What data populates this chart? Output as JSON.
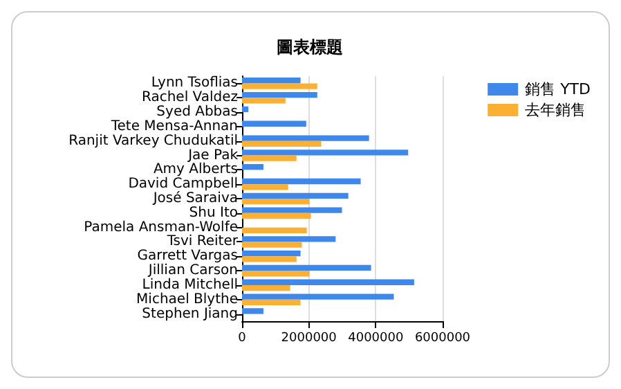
{
  "chart_data": {
    "type": "bar",
    "orientation": "horizontal",
    "title": "圖表標題",
    "categories": [
      "Lynn Tsoflias",
      "Rachel Valdez",
      "Syed Abbas",
      "Tete Mensa-Annan",
      "Ranjit Varkey Chudukatil",
      "Jae Pak",
      "Amy Alberts",
      "David Campbell",
      "José Saraiva",
      "Shu Ito",
      "Pamela Ansman-Wolfe",
      "Tsvi Reiter",
      "Garrett Vargas",
      "Jillian Carson",
      "Linda Mitchell",
      "Michael Blythe",
      "Stephen Jiang"
    ],
    "series": [
      {
        "name": "銷售 YTD",
        "color": "#3d88ea",
        "values": [
          1750000,
          2250000,
          190000,
          1920000,
          3800000,
          4970000,
          640000,
          3550000,
          3180000,
          2990000,
          null,
          2800000,
          1750000,
          3860000,
          5150000,
          4540000,
          640000
        ]
      },
      {
        "name": "去年銷售",
        "color": "#fbb034",
        "values": [
          2250000,
          1300000,
          null,
          null,
          2370000,
          1630000,
          null,
          1380000,
          2020000,
          2060000,
          1940000,
          1790000,
          1630000,
          2020000,
          1440000,
          1750000,
          null
        ]
      }
    ],
    "xlim": [
      0,
      6000000
    ],
    "xticks": [
      0,
      2000000,
      4000000,
      6000000
    ],
    "grid": "x",
    "legend": "top right"
  }
}
